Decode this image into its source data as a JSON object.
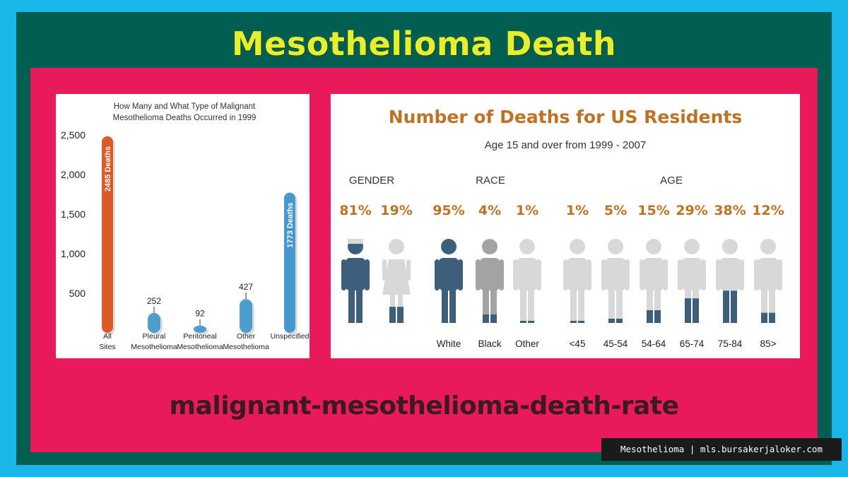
{
  "page": {
    "title": "Mesothelioma Death",
    "caption": "malignant-mesothelioma-death-rate",
    "watermark": "Mesothelioma | mls.bursakerjaloker.com"
  },
  "colors": {
    "background": "#19b6ea",
    "frame": "#035e52",
    "panel": "#e91a5c",
    "title": "#e6ef2c",
    "accent_orange": "#c07224",
    "figure_dark": "#3d5f7b",
    "figure_gray": "#a3a3a3",
    "figure_light": "#d8d8d8"
  },
  "chart_data": [
    {
      "type": "bar",
      "title": "How Many and What Type of Malignant Mesothelioma Deaths Occurred in 1999",
      "categories": [
        "All Sites",
        "Pleural Mesothelioma",
        "Peritoneal Mesothelioma",
        "Other Mesothelioma",
        "Unspecified"
      ],
      "values": [
        2485,
        252,
        92,
        427,
        1773
      ],
      "data_labels": [
        "2485 Deaths",
        "252",
        "92",
        "427",
        "1773 Deaths"
      ],
      "bar_colors": [
        "#d9531d",
        "#3d95cc",
        "#3d95cc",
        "#3d95cc",
        "#3d95cc"
      ],
      "yticks": [
        500,
        1000,
        1500,
        2000,
        2500
      ],
      "ytick_labels": [
        "500",
        "1,000",
        "1,500",
        "2,000",
        "2,500"
      ],
      "ylim": [
        0,
        2600
      ],
      "grid": false,
      "legend": "none"
    },
    {
      "type": "pictograph",
      "title": "Number of Deaths for US Residents",
      "subtitle": "Age 15 and over from 1999 - 2007",
      "groups": [
        {
          "name": "GENDER",
          "items": [
            {
              "label": "",
              "percent": 81,
              "percent_label": "81%",
              "figure": "male",
              "color": "#3d5f7b"
            },
            {
              "label": "",
              "percent": 19,
              "percent_label": "19%",
              "figure": "female",
              "color": "#d8d8d8"
            }
          ]
        },
        {
          "name": "RACE",
          "items": [
            {
              "label": "White",
              "percent": 95,
              "percent_label": "95%",
              "figure": "person",
              "color": "#3d5f7b"
            },
            {
              "label": "Black",
              "percent": 4,
              "percent_label": "4%",
              "figure": "person",
              "color": "#a3a3a3"
            },
            {
              "label": "Other",
              "percent": 1,
              "percent_label": "1%",
              "figure": "person",
              "color": "#d8d8d8"
            }
          ]
        },
        {
          "name": "AGE",
          "items": [
            {
              "label": "<45",
              "percent": 1,
              "percent_label": "1%",
              "figure": "person",
              "color": "#d8d8d8"
            },
            {
              "label": "45-54",
              "percent": 5,
              "percent_label": "5%",
              "figure": "person",
              "color": "#d8d8d8"
            },
            {
              "label": "54-64",
              "percent": 15,
              "percent_label": "15%",
              "figure": "person",
              "color": "#d8d8d8"
            },
            {
              "label": "65-74",
              "percent": 29,
              "percent_label": "29%",
              "figure": "person",
              "color": "#d8d8d8"
            },
            {
              "label": "75-84",
              "percent": 38,
              "percent_label": "38%",
              "figure": "person",
              "color": "#d8d8d8"
            },
            {
              "label": "85>",
              "percent": 12,
              "percent_label": "12%",
              "figure": "person",
              "color": "#d8d8d8"
            }
          ]
        }
      ]
    }
  ]
}
